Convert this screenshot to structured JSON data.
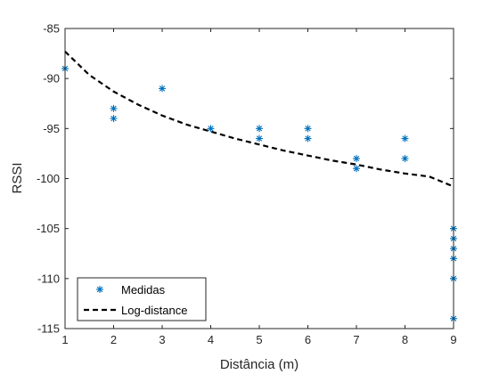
{
  "chart_data": {
    "type": "scatter",
    "xlabel": "Distância (m)",
    "ylabel": "RSSI",
    "xlim": [
      1,
      9
    ],
    "ylim": [
      -115,
      -85
    ],
    "xticks": [
      "1",
      "2",
      "3",
      "4",
      "5",
      "6",
      "7",
      "8",
      "9"
    ],
    "yticks": [
      "-85",
      "-90",
      "-95",
      "-100",
      "-105",
      "-110",
      "-115"
    ],
    "grid": false,
    "legend_position": "bottom-left",
    "series": [
      {
        "name": "Medidas",
        "kind": "markers",
        "marker": "asterisk",
        "color": "#0072BD",
        "points": [
          [
            1,
            -89
          ],
          [
            2,
            -93
          ],
          [
            2,
            -94
          ],
          [
            3,
            -91
          ],
          [
            4,
            -95
          ],
          [
            5,
            -95
          ],
          [
            5,
            -96
          ],
          [
            6,
            -95
          ],
          [
            6,
            -96
          ],
          [
            7,
            -98
          ],
          [
            7,
            -99
          ],
          [
            8,
            -96
          ],
          [
            8,
            -98
          ],
          [
            9,
            -105
          ],
          [
            9,
            -106
          ],
          [
            9,
            -107
          ],
          [
            9,
            -108
          ],
          [
            9,
            -110
          ],
          [
            9,
            -114
          ]
        ]
      },
      {
        "name": "Log-distance",
        "kind": "line",
        "style": "dashed",
        "color": "#000000",
        "x": [
          1,
          1.5,
          2,
          2.5,
          3,
          3.5,
          4,
          4.5,
          5,
          5.5,
          6,
          6.5,
          7,
          7.5,
          8,
          8.5,
          9
        ],
        "y": [
          -87.3,
          -89.65,
          -91.3,
          -92.6,
          -93.7,
          -94.6,
          -95.3,
          -96.0,
          -96.6,
          -97.2,
          -97.7,
          -98.2,
          -98.6,
          -99.1,
          -99.5,
          -99.8,
          -100.8
        ]
      }
    ]
  }
}
